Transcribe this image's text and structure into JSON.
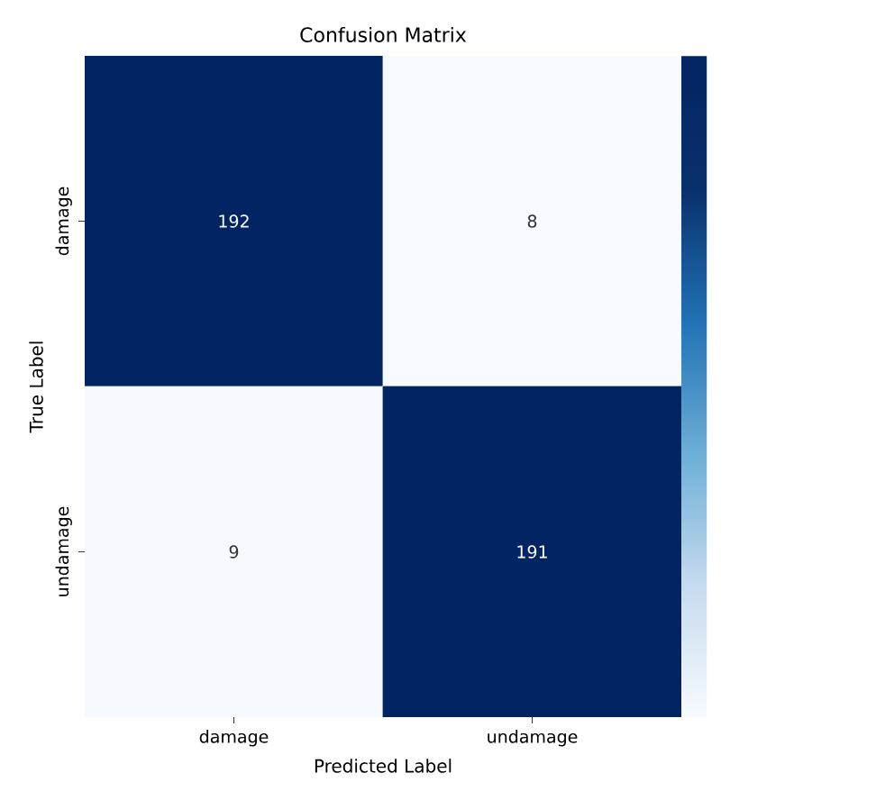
{
  "chart_data": {
    "type": "heatmap",
    "title": "Confusion Matrix",
    "xlabel": "Predicted Label",
    "ylabel": "True Label",
    "categories": [
      "damage",
      "undamage"
    ],
    "y_categories": [
      "damage",
      "undamage"
    ],
    "cells": [
      [
        192,
        8
      ],
      [
        9,
        191
      ]
    ],
    "data_labels": true
  }
}
